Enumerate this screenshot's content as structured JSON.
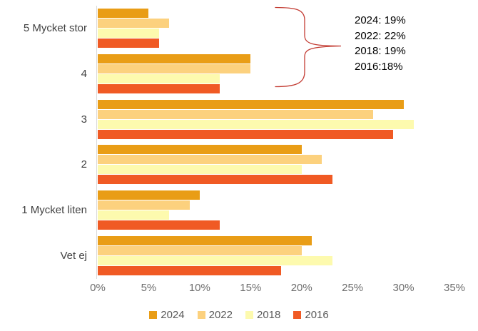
{
  "chart_data": {
    "type": "bar",
    "orientation": "horizontal",
    "title": "",
    "categories": [
      "5 Mycket stor",
      "4",
      "3",
      "2",
      "1 Mycket liten",
      "Vet ej"
    ],
    "series": [
      {
        "name": "2024",
        "color": "#E99D16",
        "values": [
          5,
          15,
          30,
          20,
          10,
          21
        ]
      },
      {
        "name": "2022",
        "color": "#FCD17E",
        "values": [
          7,
          15,
          27,
          22,
          9,
          20
        ]
      },
      {
        "name": "2018",
        "color": "#FDFAAE",
        "values": [
          6,
          12,
          31,
          20,
          7,
          23
        ]
      },
      {
        "name": "2016",
        "color": "#F05A24",
        "values": [
          6,
          12,
          29,
          23,
          12,
          18
        ]
      }
    ],
    "x_axis": {
      "min": 0,
      "max": 35,
      "tick_step": 5,
      "tick_labels": [
        "0%",
        "5%",
        "10%",
        "15%",
        "20%",
        "25%",
        "30%",
        "35%"
      ]
    },
    "legend": {
      "position": "bottom",
      "entries": [
        "2024",
        "2022",
        "2018",
        "2016"
      ]
    },
    "grid": false
  },
  "annotation": {
    "lines": {
      "0": "2024: 19%",
      "1": "2022: 22%",
      "2": "2018: 19%",
      "3": "2016:18%"
    },
    "brace_color": "#C33C33"
  },
  "colors": {
    "background": "#FFFFFF",
    "axis_line": "#D9D9D9",
    "tick_label": "#6E6E6E",
    "category_label": "#404040",
    "legend_label": "#595959"
  }
}
